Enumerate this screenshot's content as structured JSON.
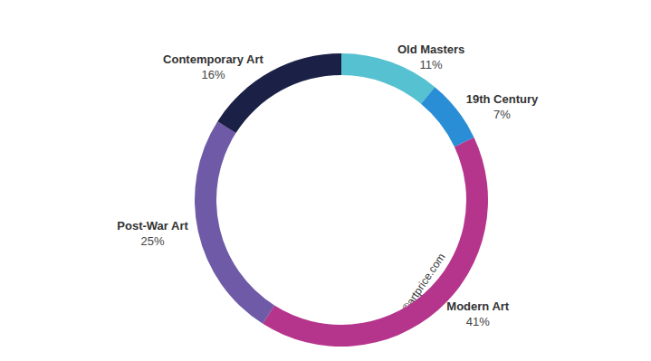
{
  "chart_data": {
    "type": "pie",
    "categories": [
      "Old Masters",
      "19th Century",
      "Modern Art",
      "Post-War Art",
      "Contemporary Art"
    ],
    "values": [
      11,
      7,
      41,
      25,
      16
    ],
    "value_labels": [
      "11%",
      "7%",
      "41%",
      "25%",
      "16%"
    ],
    "colors": [
      "#56c1d1",
      "#2a8ed6",
      "#b5358c",
      "#6e5aa6",
      "#1b2146"
    ],
    "data_labels": true,
    "annotations": [
      "©artprice.com"
    ]
  }
}
